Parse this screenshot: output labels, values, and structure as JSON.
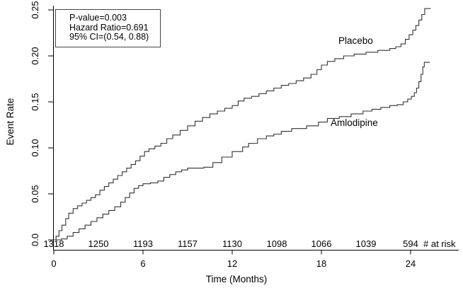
{
  "figure": {
    "y_axis_label": "Event Rate",
    "x_axis_label": "Time (Months)",
    "at_risk_caption": "# at risk",
    "annotation": {
      "lines": [
        "P-value=0.003",
        "Hazard Ratio=0.691",
        "95% CI=(0.54, 0.88)"
      ]
    },
    "colors": {
      "curve": "#333333",
      "axis": "#000000",
      "text": "#000000",
      "background": "#ffffff"
    }
  },
  "chart_data": {
    "type": "line",
    "subtype": "kaplan-meier-step",
    "title": "",
    "xlabel": "Time (Months)",
    "ylabel": "Event Rate",
    "xlim": [
      0,
      25.5
    ],
    "ylim": [
      0,
      0.25
    ],
    "grid": false,
    "legend_position": "inline-labels",
    "x_ticks": [
      {
        "value": 0,
        "label": "0"
      },
      {
        "value": 6,
        "label": "6"
      },
      {
        "value": 12,
        "label": "12"
      },
      {
        "value": 18,
        "label": "18"
      },
      {
        "value": 24,
        "label": "24"
      }
    ],
    "y_ticks": [
      {
        "value": 0.0,
        "label": "0.0"
      },
      {
        "value": 0.05,
        "label": "0.05"
      },
      {
        "value": 0.1,
        "label": "0.10"
      },
      {
        "value": 0.15,
        "label": "0.15"
      },
      {
        "value": 0.2,
        "label": "0.20"
      },
      {
        "value": 0.25,
        "label": "0.25"
      }
    ],
    "annotations": {
      "p_value": "P-value=0.003",
      "hazard_ratio": "Hazard Ratio=0.691",
      "ci_95": "95% CI=(0.54, 0.88)"
    },
    "at_risk": {
      "caption": "# at risk",
      "times": [
        0,
        3,
        6,
        9,
        12,
        15,
        18,
        21,
        24
      ],
      "counts": [
        "1318",
        "1250",
        "1193",
        "1157",
        "1130",
        "1098",
        "1066",
        "1039",
        "594"
      ]
    },
    "series": [
      {
        "name": "Placebo",
        "points": [
          [
            0,
            0
          ],
          [
            0.15,
            0.004
          ],
          [
            0.35,
            0.01
          ],
          [
            0.55,
            0.016
          ],
          [
            0.8,
            0.023
          ],
          [
            1.0,
            0.029
          ],
          [
            1.3,
            0.034
          ],
          [
            1.6,
            0.037
          ],
          [
            1.9,
            0.04
          ],
          [
            2.2,
            0.043
          ],
          [
            2.5,
            0.046
          ],
          [
            2.8,
            0.049
          ],
          [
            3.1,
            0.054
          ],
          [
            3.4,
            0.058
          ],
          [
            3.7,
            0.062
          ],
          [
            4.0,
            0.066
          ],
          [
            4.3,
            0.07
          ],
          [
            4.6,
            0.074
          ],
          [
            4.9,
            0.078
          ],
          [
            5.2,
            0.082
          ],
          [
            5.5,
            0.086
          ],
          [
            5.8,
            0.091
          ],
          [
            6.1,
            0.096
          ],
          [
            6.4,
            0.099
          ],
          [
            6.8,
            0.102
          ],
          [
            7.2,
            0.105
          ],
          [
            7.6,
            0.11
          ],
          [
            8.0,
            0.114
          ],
          [
            8.5,
            0.119
          ],
          [
            9.0,
            0.124
          ],
          [
            9.5,
            0.129
          ],
          [
            10.0,
            0.133
          ],
          [
            10.5,
            0.137
          ],
          [
            11.0,
            0.14
          ],
          [
            11.5,
            0.143
          ],
          [
            12.0,
            0.146
          ],
          [
            12.4,
            0.151
          ],
          [
            12.8,
            0.154
          ],
          [
            13.3,
            0.156
          ],
          [
            13.8,
            0.159
          ],
          [
            14.3,
            0.162
          ],
          [
            14.8,
            0.165
          ],
          [
            15.3,
            0.168
          ],
          [
            15.8,
            0.17
          ],
          [
            16.3,
            0.173
          ],
          [
            16.8,
            0.176
          ],
          [
            17.3,
            0.18
          ],
          [
            17.7,
            0.185
          ],
          [
            18.0,
            0.19
          ],
          [
            18.4,
            0.194
          ],
          [
            18.9,
            0.197
          ],
          [
            19.5,
            0.2
          ],
          [
            20.2,
            0.202
          ],
          [
            21.0,
            0.204
          ],
          [
            21.8,
            0.206
          ],
          [
            22.6,
            0.208
          ],
          [
            23.0,
            0.21
          ],
          [
            23.35,
            0.213
          ],
          [
            23.65,
            0.218
          ],
          [
            23.9,
            0.223
          ],
          [
            24.15,
            0.228
          ],
          [
            24.35,
            0.233
          ],
          [
            24.55,
            0.239
          ],
          [
            24.75,
            0.245
          ],
          [
            24.95,
            0.2515
          ],
          [
            25.35,
            0.2515
          ]
        ]
      },
      {
        "name": "Amlodipine",
        "points": [
          [
            0,
            0
          ],
          [
            0.5,
            0.001
          ],
          [
            0.9,
            0.004
          ],
          [
            1.3,
            0.008
          ],
          [
            1.7,
            0.012
          ],
          [
            2.1,
            0.016
          ],
          [
            2.5,
            0.02
          ],
          [
            2.9,
            0.024
          ],
          [
            3.3,
            0.028
          ],
          [
            3.7,
            0.032
          ],
          [
            4.1,
            0.036
          ],
          [
            4.5,
            0.041
          ],
          [
            4.8,
            0.046
          ],
          [
            5.1,
            0.051
          ],
          [
            5.4,
            0.056
          ],
          [
            5.7,
            0.059
          ],
          [
            6.0,
            0.061
          ],
          [
            6.5,
            0.062
          ],
          [
            7.0,
            0.064
          ],
          [
            7.4,
            0.068
          ],
          [
            7.8,
            0.071
          ],
          [
            8.2,
            0.074
          ],
          [
            8.6,
            0.076
          ],
          [
            9.0,
            0.078
          ],
          [
            10.1,
            0.079
          ],
          [
            10.7,
            0.084
          ],
          [
            11.3,
            0.09
          ],
          [
            12.0,
            0.096
          ],
          [
            12.7,
            0.101
          ],
          [
            13.1,
            0.105
          ],
          [
            13.7,
            0.11
          ],
          [
            14.3,
            0.113
          ],
          [
            14.8,
            0.115
          ],
          [
            15.3,
            0.118
          ],
          [
            16.0,
            0.121
          ],
          [
            17.0,
            0.124
          ],
          [
            17.8,
            0.128
          ],
          [
            18.4,
            0.132
          ],
          [
            19.2,
            0.134
          ],
          [
            20.0,
            0.137
          ],
          [
            20.8,
            0.14
          ],
          [
            21.4,
            0.142
          ],
          [
            22.0,
            0.144
          ],
          [
            22.6,
            0.146
          ],
          [
            23.1,
            0.147
          ],
          [
            23.5,
            0.15
          ],
          [
            23.8,
            0.153
          ],
          [
            24.05,
            0.156
          ],
          [
            24.25,
            0.16
          ],
          [
            24.4,
            0.165
          ],
          [
            24.55,
            0.172
          ],
          [
            24.7,
            0.18
          ],
          [
            24.82,
            0.188
          ],
          [
            24.92,
            0.193
          ],
          [
            25.3,
            0.193
          ]
        ]
      }
    ]
  }
}
